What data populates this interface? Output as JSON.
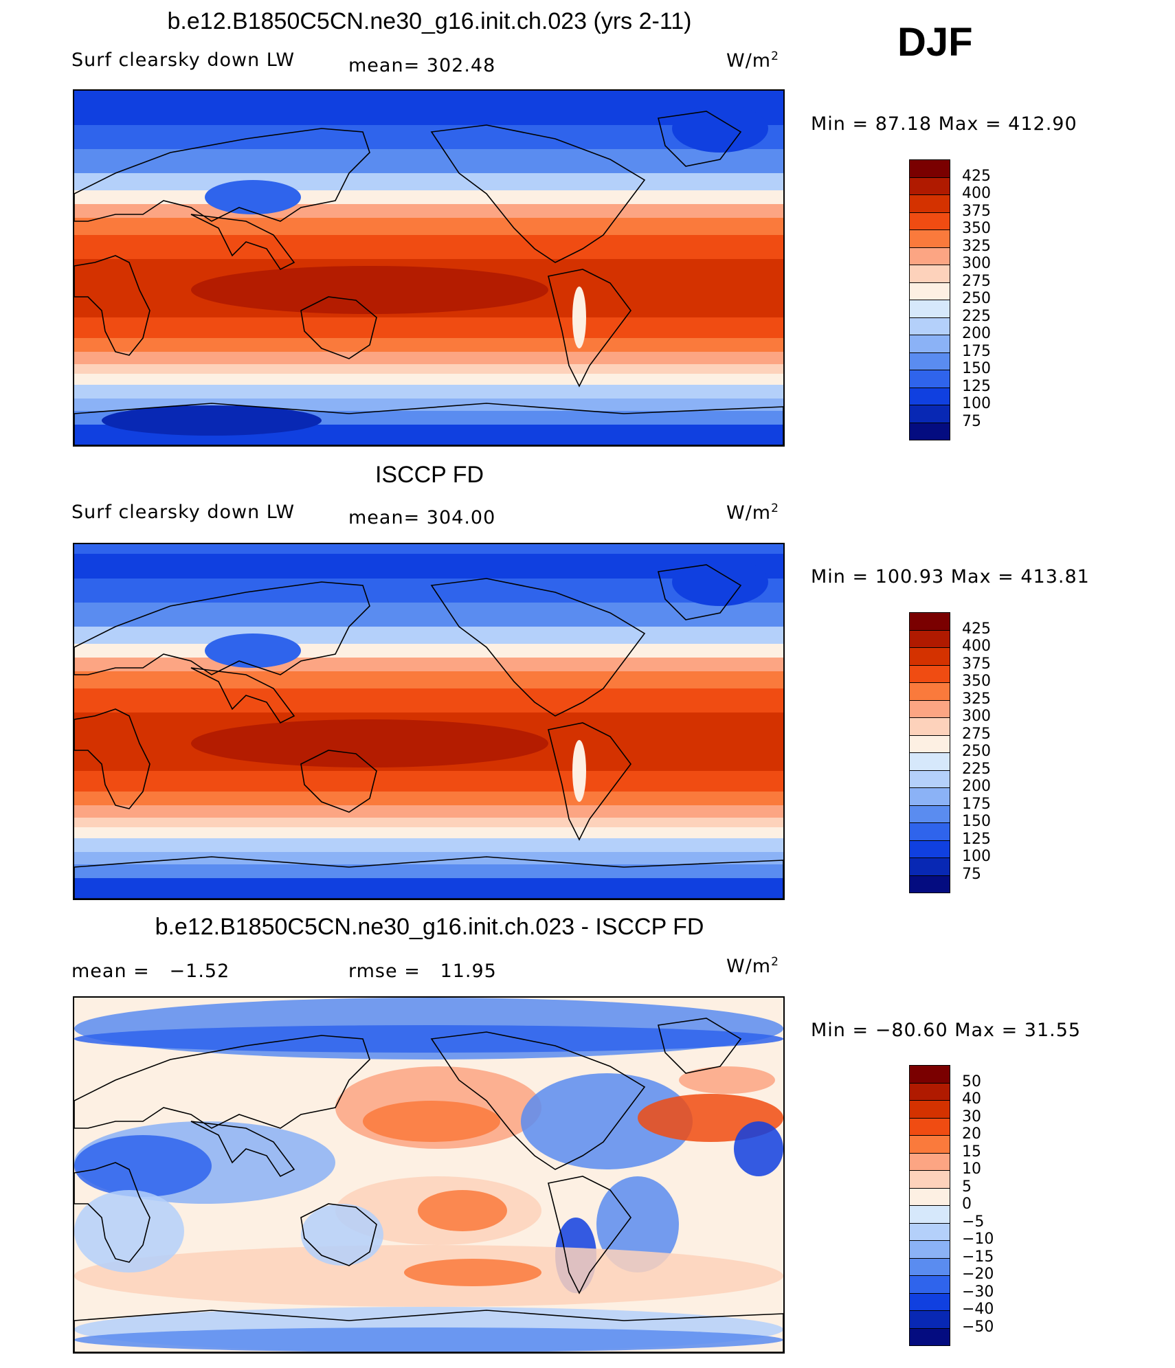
{
  "season": "DJF",
  "panels": [
    {
      "title": "b.e12.B1850C5CN.ne30_g16.init.ch.023 (yrs 2-11)",
      "left_label": "Surf clearsky down LW",
      "stat_label": "mean=",
      "stat_value": "302.48",
      "units": "W/m",
      "units_sup": "2",
      "minmax_text": "Min =   87.18 Max = 412.90",
      "variant": "model"
    },
    {
      "title": "ISCCP FD",
      "left_label": "Surf clearsky down LW",
      "stat_label": "mean=",
      "stat_value": "304.00",
      "units": "W/m",
      "units_sup": "2",
      "minmax_text": "Min = 100.93 Max = 413.81",
      "variant": "obs"
    },
    {
      "title": "b.e12.B1850C5CN.ne30_g16.init.ch.023 - ISCCP FD",
      "left_label": "mean =",
      "left_value": "−1.52",
      "stat_label": "rmse =",
      "stat_value": "11.95",
      "units": "W/m",
      "units_sup": "2",
      "minmax_text": "Min = −80.60 Max =   31.55",
      "variant": "diff"
    }
  ],
  "chart_data": [
    {
      "type": "heatmap",
      "title": "b.e12.B1850C5CN.ne30_g16.init.ch.023 (yrs 2-11)",
      "variable": "Surf clearsky down LW",
      "units": "W/m2",
      "mean": 302.48,
      "min": 87.18,
      "max": 412.9,
      "colorbar_levels": [
        425,
        400,
        375,
        350,
        325,
        300,
        275,
        250,
        225,
        200,
        175,
        150,
        125,
        100,
        75
      ],
      "colorbar_colors": [
        "#7a0000",
        "#b01a00",
        "#d43200",
        "#f04c12",
        "#fa7a3c",
        "#fca583",
        "#fdd2bb",
        "#fdf0e3",
        "#d6e8fb",
        "#b4d0fa",
        "#8bb2f6",
        "#5a8cf0",
        "#2f64ec",
        "#1040e0",
        "#0828b4",
        "#040c80"
      ]
    },
    {
      "type": "heatmap",
      "title": "ISCCP FD",
      "variable": "Surf clearsky down LW",
      "units": "W/m2",
      "mean": 304.0,
      "min": 100.93,
      "max": 413.81,
      "colorbar_levels": [
        425,
        400,
        375,
        350,
        325,
        300,
        275,
        250,
        225,
        200,
        175,
        150,
        125,
        100,
        75
      ],
      "colorbar_colors": [
        "#7a0000",
        "#b01a00",
        "#d43200",
        "#f04c12",
        "#fa7a3c",
        "#fca583",
        "#fdd2bb",
        "#fdf0e3",
        "#d6e8fb",
        "#b4d0fa",
        "#8bb2f6",
        "#5a8cf0",
        "#2f64ec",
        "#1040e0",
        "#0828b4",
        "#040c80"
      ]
    },
    {
      "type": "heatmap",
      "title": "b.e12.B1850C5CN.ne30_g16.init.ch.023 - ISCCP FD",
      "units": "W/m2",
      "mean": -1.52,
      "rmse": 11.95,
      "min": -80.6,
      "max": 31.55,
      "colorbar_levels": [
        50,
        40,
        30,
        20,
        15,
        10,
        5,
        0,
        -5,
        -10,
        -15,
        -20,
        -30,
        -40,
        -50
      ],
      "colorbar_labels": [
        "50",
        "40",
        "30",
        "20",
        "15",
        "10",
        "5",
        "0",
        "−5",
        "−10",
        "−15",
        "−20",
        "−30",
        "−40",
        "−50"
      ],
      "colorbar_colors": [
        "#7a0000",
        "#b01a00",
        "#d43200",
        "#f04c12",
        "#fa7a3c",
        "#fca583",
        "#fdd2bb",
        "#fdf0e3",
        "#d6e8fb",
        "#b4d0fa",
        "#8bb2f6",
        "#5a8cf0",
        "#2f64ec",
        "#1040e0",
        "#0828b4",
        "#040c80"
      ]
    }
  ]
}
